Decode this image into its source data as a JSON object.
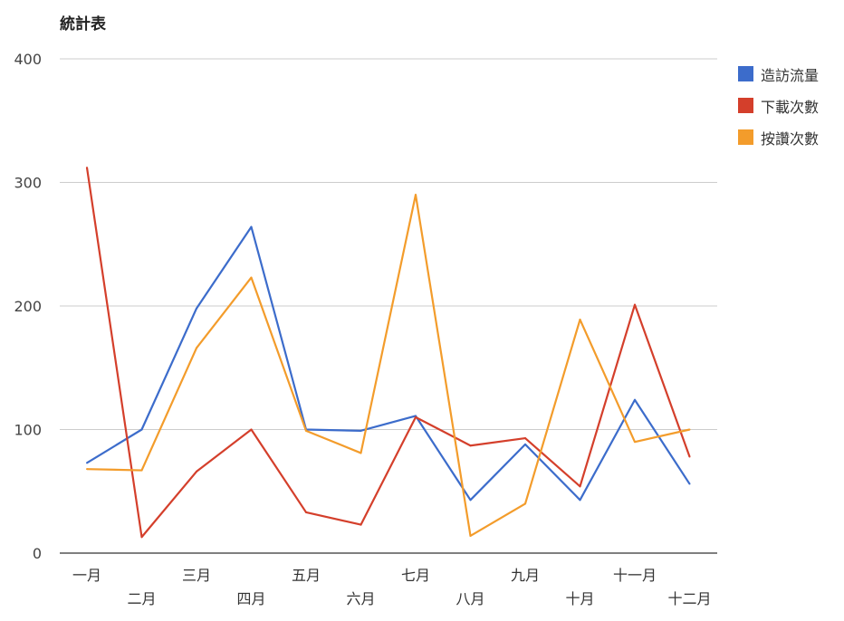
{
  "chart_data": {
    "type": "line",
    "title": "統計表",
    "xlabel": "",
    "ylabel": "",
    "ylim": [
      0,
      400
    ],
    "yticks": [
      0,
      100,
      200,
      300,
      400
    ],
    "grid": true,
    "legend_position": "right",
    "categories": [
      "一月",
      "二月",
      "三月",
      "四月",
      "五月",
      "六月",
      "七月",
      "八月",
      "九月",
      "十月",
      "十一月",
      "十二月"
    ],
    "series": [
      {
        "name": "造訪流量",
        "color": "#3c6ccb",
        "values": [
          73,
          100,
          198,
          264,
          100,
          99,
          111,
          43,
          88,
          43,
          124,
          56
        ]
      },
      {
        "name": "下載次數",
        "color": "#d43f2b",
        "values": [
          312,
          13,
          66,
          100,
          33,
          23,
          110,
          87,
          93,
          54,
          201,
          78
        ]
      },
      {
        "name": "按讚次數",
        "color": "#f39c2b",
        "values": [
          68,
          67,
          166,
          223,
          99,
          81,
          290,
          14,
          40,
          189,
          90,
          100
        ]
      }
    ]
  }
}
